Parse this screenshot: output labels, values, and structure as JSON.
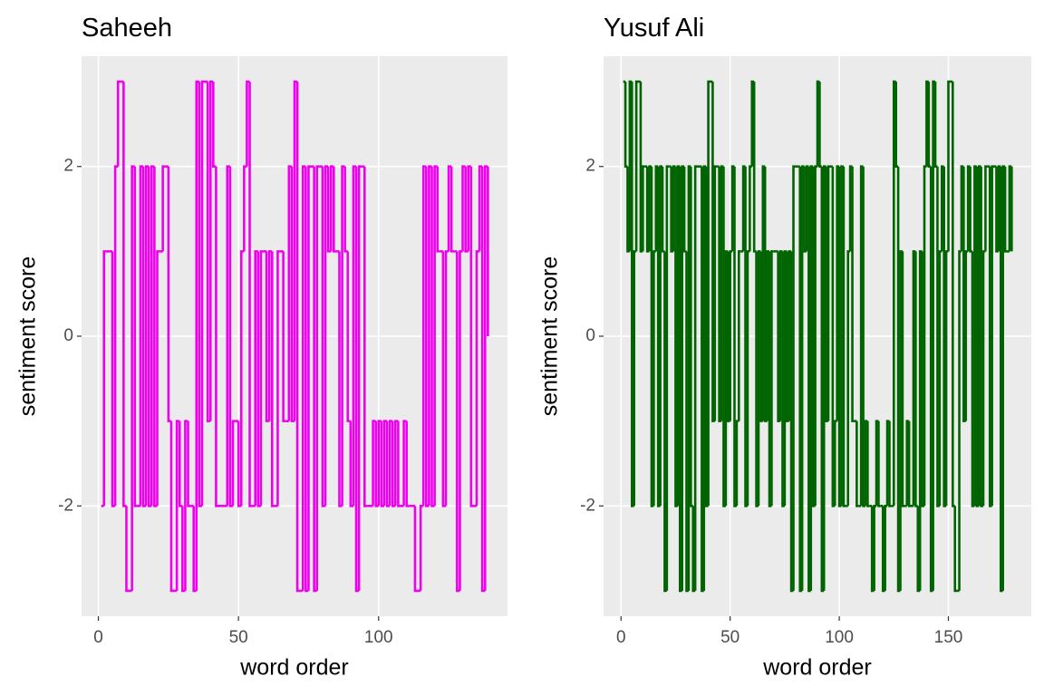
{
  "chart_data": [
    {
      "type": "step",
      "title": "Saheeh",
      "xlabel": "word order",
      "ylabel": "sentiment score",
      "color": "#ee00ee",
      "grid": true,
      "xlim": [
        -6,
        146
      ],
      "xticks": [
        0,
        50,
        100
      ],
      "ylim": [
        -3.3,
        3.3
      ],
      "yticks": [
        -2,
        0,
        2
      ],
      "x": [
        1,
        2,
        3,
        4,
        5,
        6,
        7,
        8,
        9,
        10,
        11,
        12,
        13,
        14,
        15,
        16,
        17,
        18,
        19,
        20,
        21,
        22,
        23,
        24,
        25,
        26,
        27,
        28,
        29,
        30,
        31,
        32,
        33,
        34,
        35,
        36,
        37,
        38,
        39,
        40,
        41,
        42,
        43,
        44,
        45,
        46,
        47,
        48,
        49,
        50,
        51,
        52,
        53,
        54,
        55,
        56,
        57,
        58,
        59,
        60,
        61,
        62,
        63,
        64,
        65,
        66,
        67,
        68,
        69,
        70,
        71,
        72,
        73,
        74,
        75,
        76,
        77,
        78,
        79,
        80,
        81,
        82,
        83,
        84,
        85,
        86,
        87,
        88,
        89,
        90,
        91,
        92,
        93,
        94,
        95,
        96,
        97,
        98,
        99,
        100,
        101,
        102,
        103,
        104,
        105,
        106,
        107,
        108,
        109,
        110,
        111,
        112,
        113,
        114,
        115,
        116,
        117,
        118,
        119,
        120,
        121,
        122,
        123,
        124,
        125,
        126,
        127,
        128,
        129,
        130,
        131,
        132,
        133,
        134,
        135,
        136,
        137,
        138,
        139
      ],
      "values": [
        -2,
        1,
        1,
        1,
        -2,
        2,
        3,
        3,
        -2,
        -3,
        -3,
        2,
        -2,
        -2,
        2,
        -2,
        2,
        -2,
        2,
        -2,
        1,
        1,
        2,
        2,
        -1,
        -3,
        -3,
        -1,
        -2,
        -3,
        -1,
        -2,
        -2,
        -3,
        3,
        -2,
        3,
        3,
        -1,
        3,
        2,
        -2,
        -2,
        -2,
        -2,
        2,
        -2,
        -1,
        -1,
        -2,
        1,
        2,
        3,
        -2,
        -2,
        1,
        -2,
        1,
        1,
        -1,
        1,
        -2,
        -2,
        1,
        1,
        -1,
        -1,
        2,
        -1,
        3,
        -3,
        -3,
        2,
        -3,
        2,
        2,
        -3,
        2,
        2,
        -2,
        2,
        1,
        2,
        1,
        1,
        -2,
        2,
        1,
        -1,
        -2,
        2,
        -3,
        2,
        2,
        -2,
        -2,
        -2,
        -1,
        -2,
        -1,
        -2,
        -1,
        -2,
        -1,
        -2,
        -1,
        -2,
        -2,
        -1,
        -2,
        -2,
        -2,
        -3,
        -3,
        -2,
        2,
        -2,
        2,
        -2,
        2,
        1,
        1,
        -2,
        1,
        2,
        1,
        1,
        -3,
        1,
        2,
        1,
        2,
        -2,
        -2,
        1,
        2,
        -3,
        2,
        0
      ]
    },
    {
      "type": "step",
      "title": "Yusuf Ali",
      "xlabel": "word order",
      "ylabel": "sentiment score",
      "color": "#006400",
      "grid": true,
      "xlim": [
        -8,
        188
      ],
      "xticks": [
        0,
        50,
        100,
        150
      ],
      "ylim": [
        -3.3,
        3.3
      ],
      "yticks": [
        -2,
        0,
        2
      ],
      "x": [
        1,
        2,
        3,
        4,
        5,
        6,
        7,
        8,
        9,
        10,
        11,
        12,
        13,
        14,
        15,
        16,
        17,
        18,
        19,
        20,
        21,
        22,
        23,
        24,
        25,
        26,
        27,
        28,
        29,
        30,
        31,
        32,
        33,
        34,
        35,
        36,
        37,
        38,
        39,
        40,
        41,
        42,
        43,
        44,
        45,
        46,
        47,
        48,
        49,
        50,
        51,
        52,
        53,
        54,
        55,
        56,
        57,
        58,
        59,
        60,
        61,
        62,
        63,
        64,
        65,
        66,
        67,
        68,
        69,
        70,
        71,
        72,
        73,
        74,
        75,
        76,
        77,
        78,
        79,
        80,
        81,
        82,
        83,
        84,
        85,
        86,
        87,
        88,
        89,
        90,
        91,
        92,
        93,
        94,
        95,
        96,
        97,
        98,
        99,
        100,
        101,
        102,
        103,
        104,
        105,
        106,
        107,
        108,
        109,
        110,
        111,
        112,
        113,
        114,
        115,
        116,
        117,
        118,
        119,
        120,
        121,
        122,
        123,
        124,
        125,
        126,
        127,
        128,
        129,
        130,
        131,
        132,
        133,
        134,
        135,
        136,
        137,
        138,
        139,
        140,
        141,
        142,
        143,
        144,
        145,
        146,
        147,
        148,
        149,
        150,
        151,
        152,
        153,
        154,
        155,
        156,
        157,
        158,
        159,
        160,
        161,
        162,
        163,
        164,
        165,
        166,
        167,
        168,
        169,
        170,
        171,
        172,
        173,
        174,
        175,
        176,
        177,
        178,
        179
      ],
      "values": [
        3,
        2,
        1,
        3,
        -2,
        1,
        3,
        3,
        1,
        2,
        2,
        1,
        2,
        -2,
        1,
        2,
        -2,
        2,
        1,
        -3,
        2,
        2,
        1,
        2,
        -2,
        2,
        -3,
        2,
        1,
        -3,
        2,
        -2,
        -3,
        2,
        2,
        2,
        -3,
        2,
        -2,
        3,
        3,
        -1,
        2,
        2,
        -1,
        2,
        -2,
        1,
        -1,
        1,
        2,
        -2,
        -1,
        1,
        1,
        2,
        -2,
        1,
        2,
        3,
        1,
        -2,
        1,
        -1,
        2,
        -1,
        1,
        -2,
        1,
        1,
        1,
        -1,
        1,
        -2,
        1,
        -1,
        1,
        -3,
        2,
        2,
        2,
        -3,
        2,
        1,
        2,
        -3,
        2,
        -2,
        2,
        3,
        2,
        -3,
        2,
        -1,
        2,
        2,
        -2,
        -1,
        2,
        -2,
        2,
        -2,
        -2,
        1,
        2,
        -1,
        -1,
        -2,
        -2,
        2,
        -2,
        -1,
        -2,
        -2,
        -3,
        -2,
        -1,
        -2,
        -2,
        -3,
        -2,
        -1,
        -2,
        -2,
        3,
        2,
        -3,
        1,
        -2,
        -2,
        -1,
        -2,
        -2,
        1,
        -2,
        -3,
        1,
        -2,
        2,
        3,
        2,
        -3,
        3,
        2,
        -2,
        1,
        2,
        -2,
        1,
        3,
        3,
        -2,
        -3,
        -3,
        1,
        2,
        -1,
        1,
        2,
        1,
        -2,
        2,
        -2,
        2,
        -2,
        1,
        2,
        2,
        -2,
        2,
        2,
        1,
        2,
        -3,
        2,
        1,
        1,
        2,
        1
      ]
    }
  ]
}
